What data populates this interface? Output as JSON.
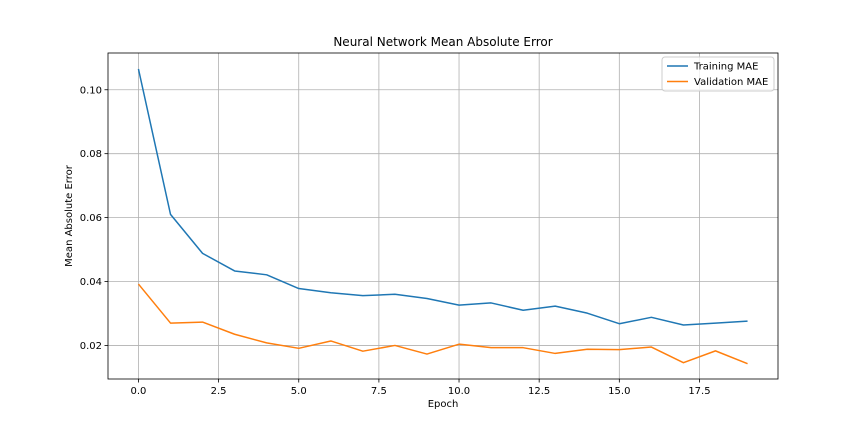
{
  "chart_data": {
    "type": "line",
    "title": "Neural Network Mean Absolute Error",
    "xlabel": "Epoch",
    "ylabel": "Mean Absolute Error",
    "xlim": [
      -0.95,
      19.95
    ],
    "ylim": [
      0.0095,
      0.1115
    ],
    "x_ticks": [
      0.0,
      2.5,
      5.0,
      7.5,
      10.0,
      12.5,
      15.0,
      17.5
    ],
    "x_tick_labels": [
      "0.0",
      "2.5",
      "5.0",
      "7.5",
      "10.0",
      "12.5",
      "15.0",
      "17.5"
    ],
    "y_ticks": [
      0.02,
      0.04,
      0.06,
      0.08,
      0.1
    ],
    "y_tick_labels": [
      "0.02",
      "0.04",
      "0.06",
      "0.08",
      "0.10"
    ],
    "grid": true,
    "legend_position": "top-right",
    "x": [
      0,
      1,
      2,
      3,
      4,
      5,
      6,
      7,
      8,
      9,
      10,
      11,
      12,
      13,
      14,
      15,
      16,
      17,
      18,
      19
    ],
    "series": [
      {
        "name": "Training MAE",
        "color": "#1f77b4",
        "values": [
          0.1065,
          0.061,
          0.0488,
          0.0433,
          0.0421,
          0.0378,
          0.0365,
          0.0356,
          0.036,
          0.0347,
          0.0326,
          0.0333,
          0.031,
          0.0323,
          0.0301,
          0.0268,
          0.0288,
          0.0264,
          0.027,
          0.0276
        ]
      },
      {
        "name": "Validation MAE",
        "color": "#ff7f0e",
        "values": [
          0.0392,
          0.027,
          0.0273,
          0.0235,
          0.0208,
          0.0191,
          0.0214,
          0.0182,
          0.02,
          0.0173,
          0.0204,
          0.0193,
          0.0193,
          0.0175,
          0.0188,
          0.0187,
          0.0195,
          0.0146,
          0.0183,
          0.0143
        ]
      }
    ]
  }
}
